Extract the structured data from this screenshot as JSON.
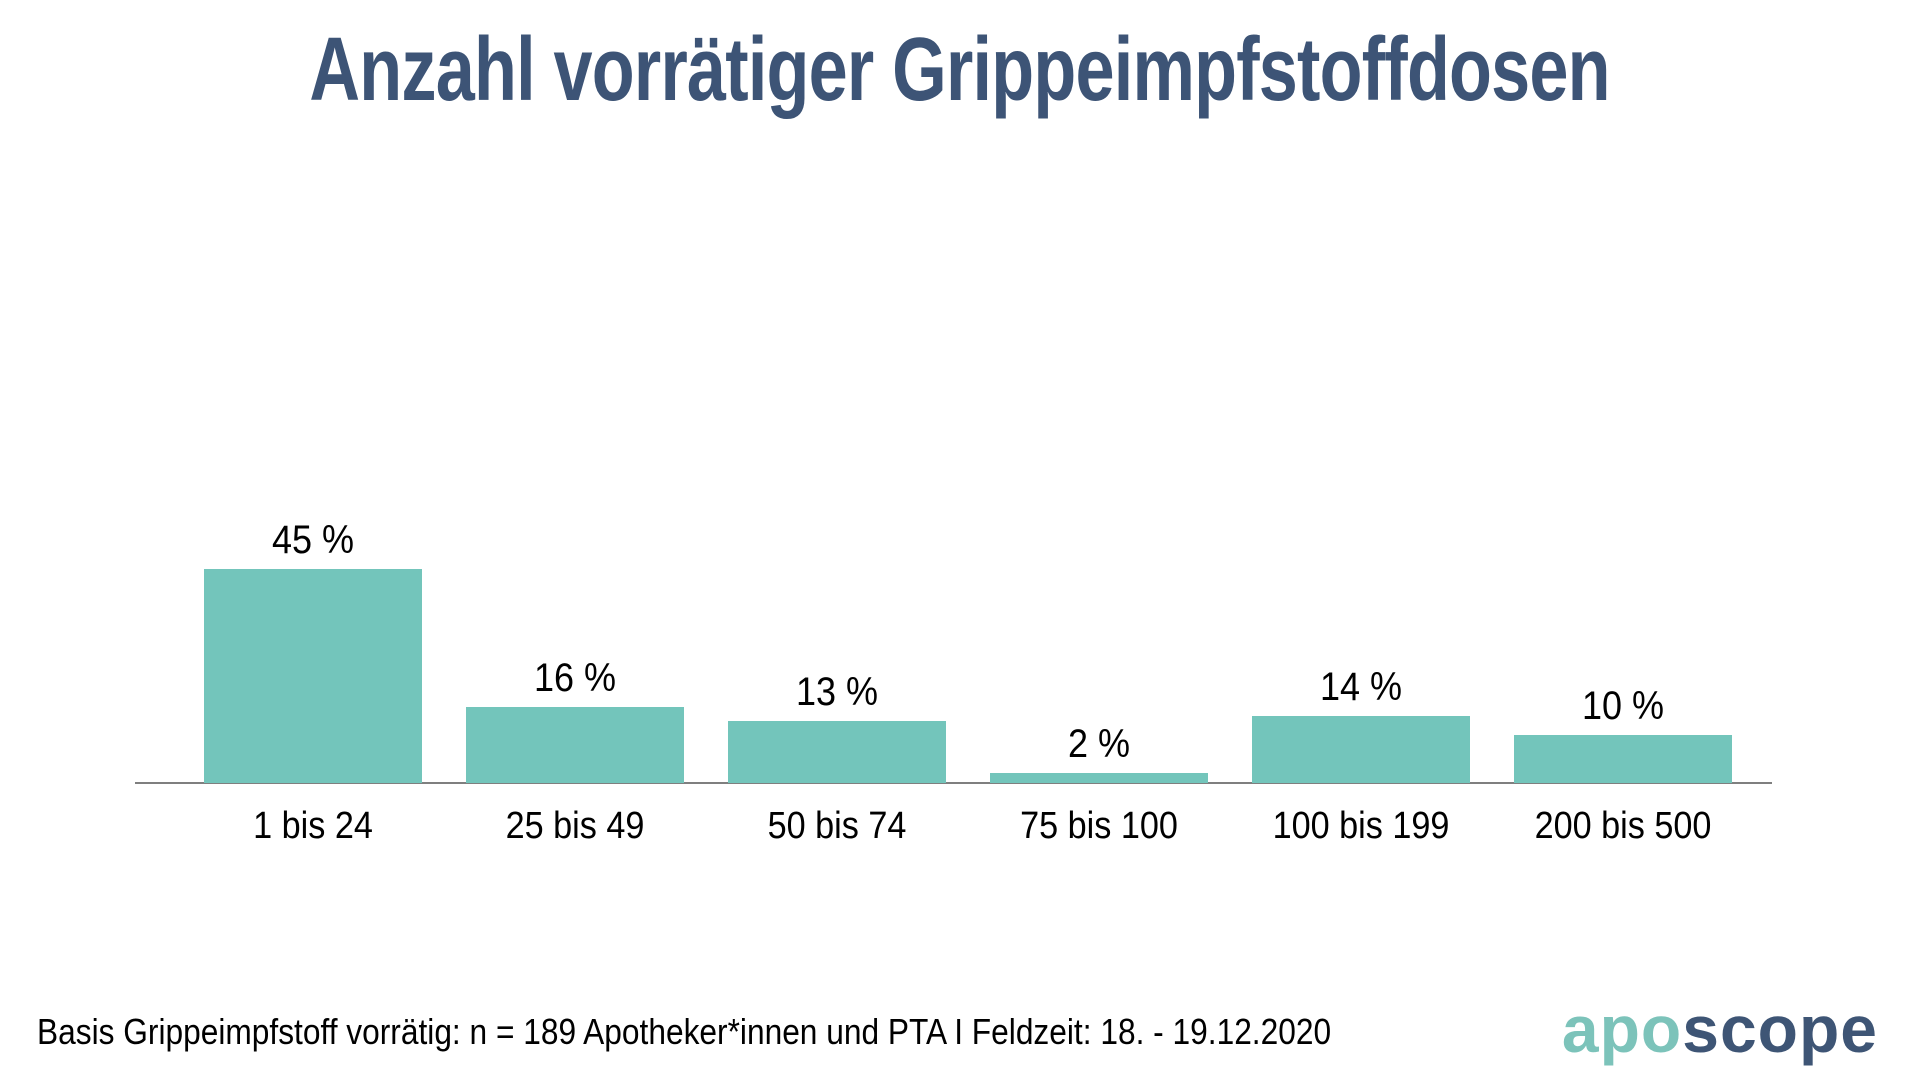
{
  "title": "Anzahl vorrätiger Grippeimpfstoffdosen",
  "chart_data": {
    "type": "bar",
    "categories": [
      "1 bis 24",
      "25 bis 49",
      "50 bis 74",
      "75 bis 100",
      "100 bis 199",
      "200 bis 500"
    ],
    "values": [
      45,
      16,
      13,
      2,
      14,
      10
    ],
    "value_labels": [
      "45 %",
      "16 %",
      "13 %",
      "2 %",
      "14 %",
      "10 %"
    ],
    "unit": "%",
    "title": "Anzahl vorrätiger Grippeimpfstoffdosen",
    "xlabel": "",
    "ylabel": "",
    "ylim": [
      0,
      45
    ],
    "grid": false,
    "legend": null,
    "bar_color": "#73c5bb",
    "axis_color": "#7f7f7f"
  },
  "footer": {
    "basis_note": "Basis Grippeimpfstoff vorrätig: n = 189 Apotheker*innen und PTA I Feldzeit: 18. - 19.12.2020",
    "logo": {
      "part1": "apo",
      "part2": "scope"
    }
  },
  "colors": {
    "background": "#ffffff",
    "title": "#3d5476",
    "bar": "#73c5bb",
    "axis": "#7f7f7f",
    "label": "#000000",
    "logo_apo": "#7cc3ba",
    "logo_scope": "#3e5575"
  }
}
